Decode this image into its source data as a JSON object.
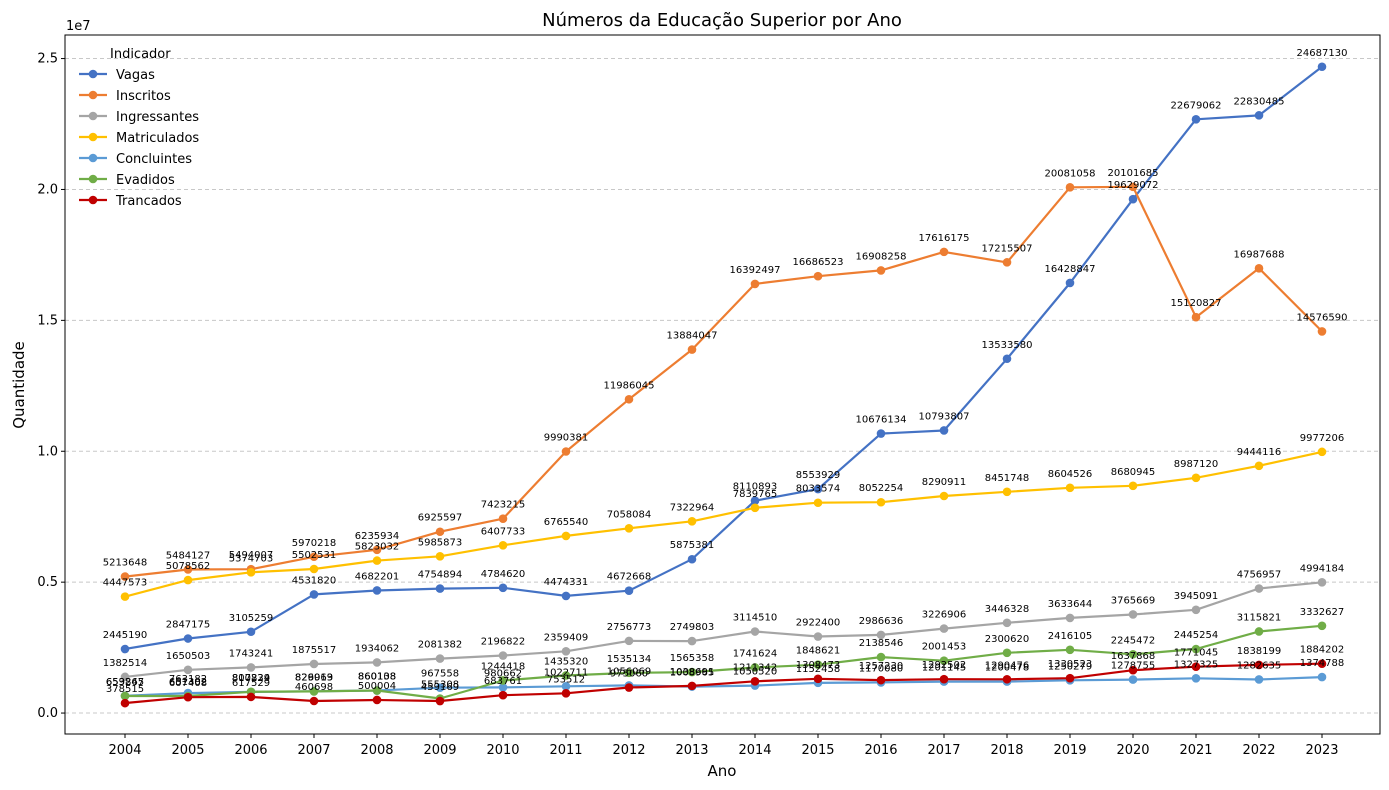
{
  "chart_data": {
    "type": "line",
    "title": "Números da Educação Superior por Ano",
    "xlabel": "Ano",
    "ylabel": "Quantidade",
    "y_offset_label": "1e7",
    "ylim": [
      -800000,
      25900000
    ],
    "y_ticks": [
      0,
      5000000,
      10000000,
      15000000,
      20000000,
      25000000
    ],
    "y_tick_labels": [
      "0.0",
      "0.5",
      "1.0",
      "1.5",
      "2.0",
      "2.5"
    ],
    "grid": "horizontal dashed",
    "legend": {
      "title": "Indicador",
      "placement": "top-left"
    },
    "categories": [
      "2004",
      "2005",
      "2006",
      "2007",
      "2008",
      "2009",
      "2010",
      "2011",
      "2012",
      "2013",
      "2014",
      "2015",
      "2016",
      "2017",
      "2018",
      "2019",
      "2020",
      "2021",
      "2022",
      "2023"
    ],
    "series": [
      {
        "name": "Vagas",
        "color": "#4472c4",
        "values": [
          2445190,
          2847175,
          3105259,
          4531820,
          4682201,
          4754894,
          4784620,
          4474331,
          4672668,
          5875381,
          8110893,
          8553929,
          10676134,
          10793807,
          13533580,
          16428847,
          19629072,
          22679062,
          22830485,
          24687130
        ]
      },
      {
        "name": "Inscritos",
        "color": "#ed7d31",
        "values": [
          5213648,
          5484127,
          5494007,
          5970218,
          6235934,
          6925597,
          7423215,
          9990381,
          11986045,
          13884047,
          16392497,
          16686523,
          16908258,
          17616175,
          17215507,
          20081058,
          20101685,
          15120827,
          16987688,
          14576590
        ]
      },
      {
        "name": "Ingressantes",
        "color": "#a5a5a5",
        "values": [
          1382514,
          1650503,
          1743241,
          1875517,
          1934062,
          2081382,
          2196822,
          2359409,
          2756773,
          2749803,
          3114510,
          2922400,
          2986636,
          3226906,
          3446328,
          3633644,
          3765669,
          3945091,
          4756957,
          4994184
        ]
      },
      {
        "name": "Matriculados",
        "color": "#ffc000",
        "values": [
          4447573,
          5078562,
          5374703,
          5502531,
          5823032,
          5985873,
          6407733,
          6765540,
          7058084,
          7322964,
          7839765,
          8033574,
          8052254,
          8290911,
          8451748,
          8604526,
          8680945,
          8987120,
          9444116,
          9977206
        ]
      },
      {
        "name": "Concluintes",
        "color": "#5b9bd5",
        "values": [
          659847,
          763182,
          807224,
          829913,
          860108,
          967558,
          980662,
          1022711,
          1056069,
          1008965,
          1050520,
          1152458,
          1170080,
          1201145,
          1200478,
          1250279,
          1278755,
          1327325,
          1282635,
          1374788
        ]
      },
      {
        "name": "Evadidos",
        "color": "#70ad47",
        "values": [
          653265,
          651302,
          810839,
          826069,
          860138,
          555308,
          1244418,
          1435320,
          1535134,
          1565358,
          1741624,
          1848621,
          2138546,
          2001453,
          2300620,
          2416105,
          2245472,
          2445254,
          3115821,
          3332627
        ]
      },
      {
        "name": "Trancados",
        "color": "#c00000",
        "values": [
          378515,
          607408,
          617529,
          460698,
          500004,
          459169,
          683761,
          753512,
          975060,
          1038691,
          1211342,
          1308473,
          1257230,
          1292502,
          1290476,
          1330523,
          1637868,
          1771045,
          1838199,
          1884202
        ]
      }
    ]
  }
}
